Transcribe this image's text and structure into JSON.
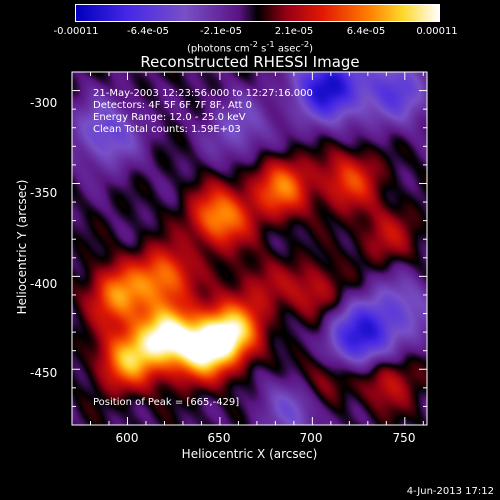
{
  "colorbar": {
    "ticks": [
      "-0.00011",
      "-6.4e-05",
      "-2.1e-05",
      "2.1e-05",
      "6.4e-05",
      "0.00011"
    ],
    "unit_prefix": "(photons cm",
    "unit_exp1": "-2",
    "unit_mid": " s",
    "unit_exp2": "-1",
    "unit_mid2": " asec",
    "unit_exp3": "-2",
    "unit_suffix": ")",
    "range": [
      -0.00011,
      0.00011
    ]
  },
  "chart_data": {
    "type": "heatmap",
    "title": "Reconstructed RHESSI Image",
    "xlabel": "Heliocentric X (arcsec)",
    "ylabel": "Heliocentric Y (arcsec)",
    "xlim": [
      570,
      762
    ],
    "ylim": [
      -480,
      -290
    ],
    "xticks": [
      "600",
      "650",
      "700",
      "750"
    ],
    "yticks": [
      "-300",
      "-350",
      "-400",
      "-450"
    ],
    "xtick_values": [
      600,
      650,
      700,
      750
    ],
    "ytick_values": [
      -300,
      -350,
      -400,
      -450
    ],
    "annotations": [
      "21-May-2003 12:23:56.000 to 12:27:16.000",
      "Detectors: 4F 5F 6F 7F 8F, Att 0",
      "Energy Range: 12.0 - 25.0 keV",
      "Clean    Total counts: 1.59E+03",
      "Position of Peak = [665,-429]"
    ],
    "peak": {
      "x": 665,
      "y": -429
    },
    "sources": [
      {
        "x": 620,
        "y": -432,
        "v": 1.0
      },
      {
        "x": 655,
        "y": -430,
        "v": 1.0
      },
      {
        "x": 640,
        "y": -440,
        "v": 0.9
      },
      {
        "x": 600,
        "y": -445,
        "v": 0.75
      },
      {
        "x": 595,
        "y": -410,
        "v": 0.7
      },
      {
        "x": 620,
        "y": -400,
        "v": 0.65
      },
      {
        "x": 650,
        "y": -368,
        "v": 0.75
      },
      {
        "x": 683,
        "y": -352,
        "v": 0.65
      },
      {
        "x": 720,
        "y": -348,
        "v": 0.5
      },
      {
        "x": 740,
        "y": -378,
        "v": 0.3
      },
      {
        "x": 702,
        "y": -408,
        "v": 0.35
      },
      {
        "x": 740,
        "y": -455,
        "v": 0.4
      },
      {
        "x": 705,
        "y": -455,
        "v": 0.35
      },
      {
        "x": 672,
        "y": -405,
        "v": 0.25
      },
      {
        "x": 708,
        "y": -298,
        "v": -0.9
      },
      {
        "x": 745,
        "y": -300,
        "v": -0.55
      },
      {
        "x": 725,
        "y": -433,
        "v": -0.8
      },
      {
        "x": 588,
        "y": -323,
        "v": -0.5
      },
      {
        "x": 660,
        "y": -320,
        "v": -0.35
      },
      {
        "x": 748,
        "y": -418,
        "v": -0.4
      },
      {
        "x": 690,
        "y": -470,
        "v": -0.4
      }
    ]
  },
  "footer": "4-Jun-2013 17:12"
}
